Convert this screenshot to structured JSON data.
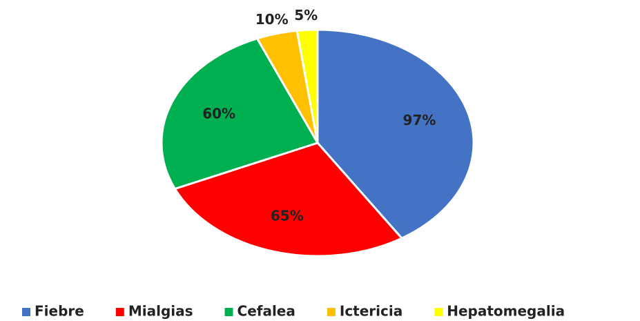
{
  "chart_data": {
    "type": "pie",
    "categories": [
      "Fiebre",
      "Mialgias",
      "Cefalea",
      "Ictericia",
      "Hepatomegalia"
    ],
    "values": [
      97,
      65,
      60,
      10,
      5
    ],
    "value_labels": [
      "97%",
      "65%",
      "60%",
      "10%",
      "5%"
    ],
    "colors": [
      "#4472c4",
      "#ff0000",
      "#00b050",
      "#ffc000",
      "#ffff00"
    ],
    "legend": "bottom"
  }
}
